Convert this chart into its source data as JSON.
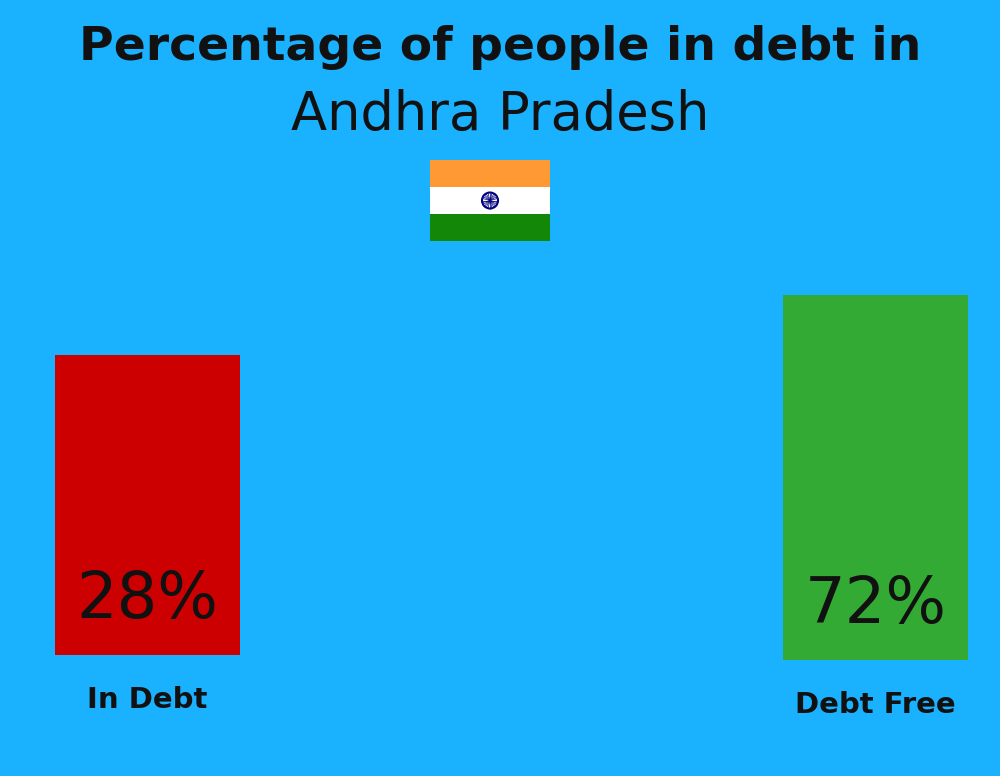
{
  "title_line1": "Percentage of people in debt in",
  "title_line2": "Andhra Pradesh",
  "background_color": "#1ab2ff",
  "bar_left_label": "28%",
  "bar_right_label": "72%",
  "bar_left_color": "#cc0000",
  "bar_right_color": "#33aa33",
  "label_left": "In Debt",
  "label_right": "Debt Free",
  "title_fontsize": 34,
  "subtitle_fontsize": 38,
  "bar_label_fontsize": 46,
  "axis_label_fontsize": 21,
  "title_color": "#111111",
  "label_color": "#111111",
  "bar_text_color": "#111111",
  "flag_orange": "#FF9933",
  "flag_white": "#FFFFFF",
  "flag_green": "#138808",
  "flag_navy": "#000080"
}
